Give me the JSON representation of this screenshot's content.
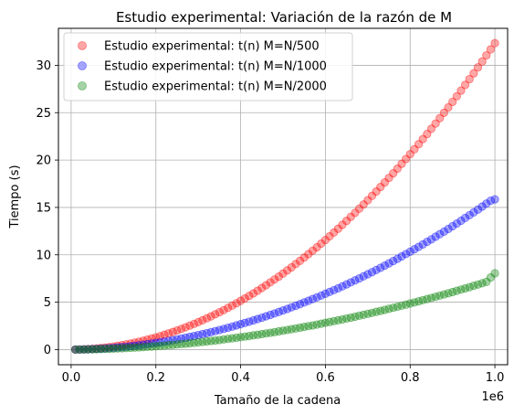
{
  "chart_data": {
    "type": "scatter",
    "title": "Estudio experimental: Variación de la razón de M",
    "xlabel": "Tamaño de la cadena",
    "ylabel": "Tiempo (s)",
    "x_offset_label": "1e6",
    "xlim": [
      -0.03,
      1.03
    ],
    "ylim": [
      -1.6,
      33.9
    ],
    "xticks": [
      0.0,
      0.2,
      0.4,
      0.6,
      0.8,
      1.0
    ],
    "xtick_labels": [
      "0.0",
      "0.2",
      "0.4",
      "0.6",
      "0.8",
      "1.0"
    ],
    "yticks": [
      0,
      5,
      10,
      15,
      20,
      25,
      30
    ],
    "ytick_labels": [
      "0",
      "5",
      "10",
      "15",
      "20",
      "25",
      "30"
    ],
    "grid": true,
    "legend_position": "top-left",
    "x_units_note": "x values are in units of 1e6 (as printed by the axis offset label)",
    "x": [
      0.01,
      0.02,
      0.03,
      0.04,
      0.05,
      0.06,
      0.07,
      0.08,
      0.09,
      0.1,
      0.11,
      0.12,
      0.13,
      0.14,
      0.15,
      0.16,
      0.17,
      0.18,
      0.19,
      0.2,
      0.21,
      0.22,
      0.23,
      0.24,
      0.25,
      0.26,
      0.27,
      0.28,
      0.29,
      0.3,
      0.31,
      0.32,
      0.33,
      0.34,
      0.35,
      0.36,
      0.37,
      0.38,
      0.39,
      0.4,
      0.41,
      0.42,
      0.43,
      0.44,
      0.45,
      0.46,
      0.47,
      0.48,
      0.49,
      0.5,
      0.51,
      0.52,
      0.53,
      0.54,
      0.55,
      0.56,
      0.57,
      0.58,
      0.59,
      0.6,
      0.61,
      0.62,
      0.63,
      0.64,
      0.65,
      0.66,
      0.67,
      0.68,
      0.69,
      0.7,
      0.71,
      0.72,
      0.73,
      0.74,
      0.75,
      0.76,
      0.77,
      0.78,
      0.79,
      0.8,
      0.81,
      0.82,
      0.83,
      0.84,
      0.85,
      0.86,
      0.87,
      0.88,
      0.89,
      0.9,
      0.91,
      0.92,
      0.93,
      0.94,
      0.95,
      0.96,
      0.97,
      0.98,
      0.99,
      1.0
    ],
    "series": [
      {
        "name": "Estudio experimental: t(n) M=N/500",
        "color": "#ff0000",
        "values": [
          0.0,
          0.01,
          0.03,
          0.05,
          0.08,
          0.12,
          0.16,
          0.21,
          0.26,
          0.32,
          0.39,
          0.46,
          0.55,
          0.63,
          0.73,
          0.83,
          0.93,
          1.05,
          1.17,
          1.29,
          1.42,
          1.56,
          1.71,
          1.86,
          2.02,
          2.18,
          2.35,
          2.53,
          2.71,
          2.9,
          3.09,
          3.3,
          3.5,
          3.72,
          3.94,
          4.16,
          4.4,
          4.64,
          4.88,
          5.14,
          5.4,
          5.66,
          5.93,
          6.21,
          6.5,
          6.79,
          7.09,
          7.39,
          7.7,
          8.02,
          8.35,
          8.68,
          9.02,
          9.36,
          9.71,
          10.07,
          10.43,
          10.8,
          11.18,
          11.56,
          11.95,
          12.35,
          12.75,
          13.16,
          13.58,
          14.0,
          14.43,
          14.87,
          15.31,
          15.76,
          16.22,
          16.68,
          17.15,
          17.63,
          18.11,
          18.6,
          19.09,
          19.6,
          20.11,
          20.62,
          21.14,
          21.67,
          22.21,
          22.75,
          23.3,
          23.85,
          24.42,
          24.99,
          25.56,
          26.14,
          26.73,
          27.33,
          27.93,
          28.54,
          29.15,
          29.78,
          30.4,
          31.04,
          31.68,
          32.33
        ]
      },
      {
        "name": "Estudio experimental: t(n) M=N/1000",
        "color": "#0000ff",
        "values": [
          0.0,
          0.01,
          0.02,
          0.03,
          0.05,
          0.07,
          0.09,
          0.12,
          0.15,
          0.18,
          0.22,
          0.26,
          0.3,
          0.35,
          0.4,
          0.45,
          0.51,
          0.57,
          0.63,
          0.7,
          0.76,
          0.84,
          0.91,
          0.99,
          1.07,
          1.16,
          1.25,
          1.34,
          1.43,
          1.53,
          1.63,
          1.73,
          1.84,
          1.95,
          2.06,
          2.18,
          2.3,
          2.42,
          2.55,
          2.68,
          2.81,
          2.94,
          3.08,
          3.22,
          3.36,
          3.51,
          3.66,
          3.81,
          3.97,
          4.13,
          4.29,
          4.46,
          4.62,
          4.79,
          4.97,
          5.15,
          5.33,
          5.51,
          5.7,
          5.89,
          6.08,
          6.27,
          6.47,
          6.67,
          6.88,
          7.09,
          7.3,
          7.51,
          7.73,
          7.95,
          8.17,
          8.4,
          8.63,
          8.86,
          9.1,
          9.34,
          9.58,
          9.83,
          10.08,
          10.33,
          10.58,
          10.84,
          11.1,
          11.37,
          11.63,
          11.91,
          12.18,
          12.45,
          12.73,
          13.02,
          13.3,
          13.59,
          13.89,
          14.18,
          14.48,
          14.78,
          15.09,
          15.4,
          15.71,
          15.85
        ]
      },
      {
        "name": "Estudio experimental: t(n) M=N/2000",
        "color": "#008000",
        "values": [
          0.0,
          0.0,
          0.01,
          0.02,
          0.03,
          0.04,
          0.05,
          0.07,
          0.08,
          0.1,
          0.12,
          0.14,
          0.16,
          0.18,
          0.21,
          0.23,
          0.26,
          0.29,
          0.32,
          0.35,
          0.39,
          0.42,
          0.46,
          0.5,
          0.54,
          0.58,
          0.62,
          0.67,
          0.71,
          0.76,
          0.81,
          0.86,
          0.91,
          0.96,
          1.01,
          1.07,
          1.13,
          1.19,
          1.25,
          1.31,
          1.37,
          1.43,
          1.5,
          1.56,
          1.63,
          1.7,
          1.77,
          1.84,
          1.92,
          1.99,
          2.07,
          2.15,
          2.23,
          2.31,
          2.39,
          2.47,
          2.55,
          2.64,
          2.73,
          2.82,
          2.91,
          3.0,
          3.09,
          3.18,
          3.28,
          3.37,
          3.47,
          3.57,
          3.67,
          3.77,
          3.87,
          3.98,
          4.08,
          4.19,
          4.3,
          4.41,
          4.52,
          4.63,
          4.74,
          4.86,
          4.97,
          5.09,
          5.21,
          5.33,
          5.45,
          5.57,
          5.69,
          5.82,
          5.94,
          6.07,
          6.2,
          6.33,
          6.46,
          6.59,
          6.73,
          6.86,
          7.0,
          7.14,
          7.6,
          8.05
        ]
      }
    ]
  }
}
